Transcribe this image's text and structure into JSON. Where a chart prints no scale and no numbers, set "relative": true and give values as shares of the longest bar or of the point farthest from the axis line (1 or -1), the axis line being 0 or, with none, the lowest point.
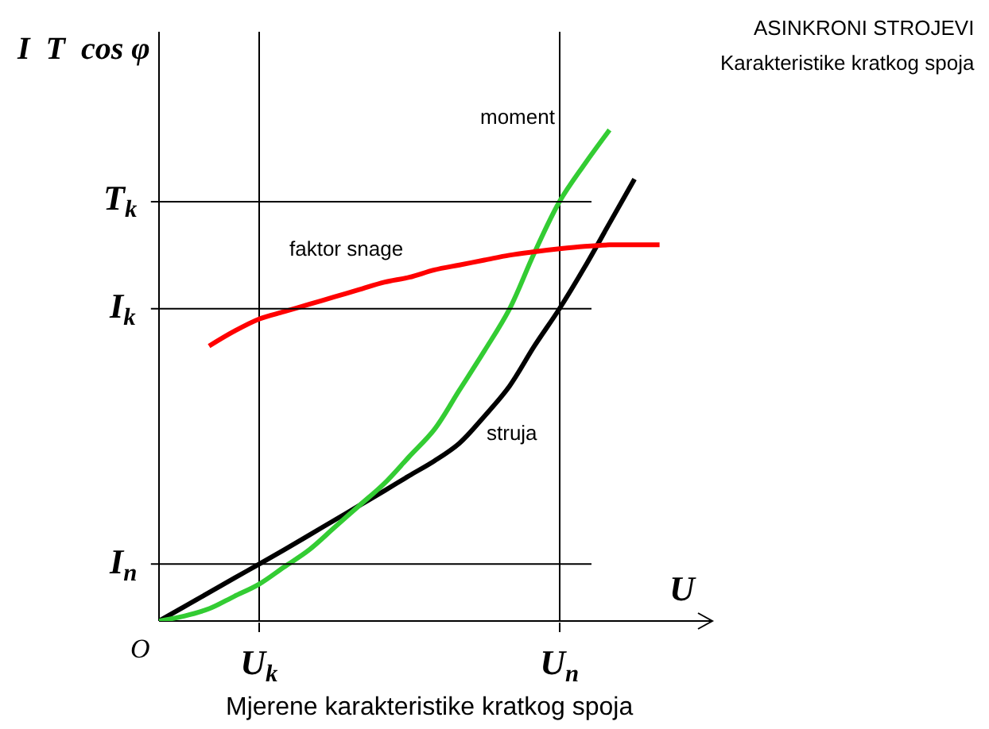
{
  "chart_data": {
    "type": "line",
    "relative": true,
    "title": "ASINKRONI STROJEVI",
    "subtitle": "Karakteristike kratkog spoja",
    "xlabel": "U",
    "ylabel": "I  T  cos φ",
    "legend": false,
    "grid": "x",
    "marker": "none",
    "line_style": "solid",
    "categories": [
      null,
      null,
      null,
      null,
      "U$_{k}$",
      null,
      null,
      null,
      null,
      null,
      null,
      null,
      null,
      null,
      null,
      null,
      "U$_{n}$",
      null,
      null,
      null,
      null
    ],
    "series": [
      {
        "name": "struja",
        "color": "#000000",
        "values": [
          0,
          0.029,
          0.058,
          0.087,
          0.116,
          0.145,
          0.175,
          0.205,
          0.235,
          0.265,
          0.296,
          0.326,
          0.362,
          0.417,
          0.478,
          0.56,
          0.636,
          0.72,
          0.81,
          0.9,
          null
        ]
      },
      {
        "name": "moment",
        "color": "#33cc33",
        "values": [
          0,
          0.01,
          0.025,
          0.05,
          0.075,
          0.11,
          0.145,
          0.19,
          0.235,
          0.28,
          0.335,
          0.39,
          0.47,
          0.55,
          0.635,
          0.75,
          0.854,
          0.93,
          1,
          null,
          null
        ]
      },
      {
        "name": "faktor snage",
        "color": "#ff0000",
        "values": [
          null,
          null,
          0.56,
          0.59,
          0.615,
          0.63,
          0.645,
          0.66,
          0.675,
          0.69,
          0.7,
          0.715,
          0.725,
          0.735,
          0.745,
          0.752,
          0.758,
          0.763,
          0.766,
          0.766,
          0.766
        ]
      }
    ],
    "ref_lines": [
      {
        "axis": "y",
        "value": 0.116,
        "label": "I$_{n}$"
      },
      {
        "axis": "y",
        "value": 0.636,
        "label": "I$_{k}$"
      },
      {
        "axis": "y",
        "value": 0.854,
        "label": "T$_{k}$"
      }
    ],
    "annotations": [
      "O",
      "Mjerene karakteristike kratkog spoja"
    ]
  }
}
